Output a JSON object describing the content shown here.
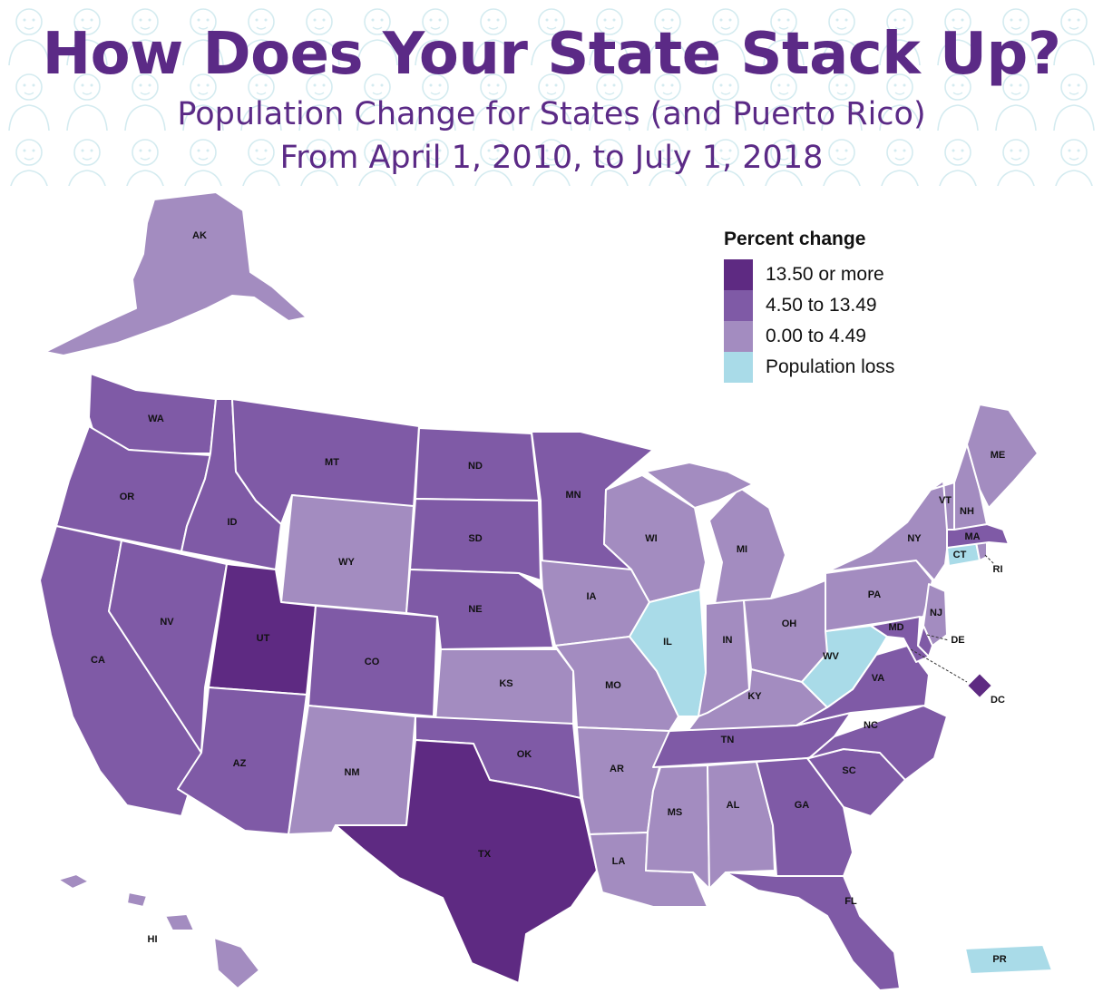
{
  "title": "How Does Your State Stack Up?",
  "subtitle_line1": "Population Change for States (and Puerto Rico)",
  "subtitle_line2": "From April 1, 2010, to July 1, 2018",
  "colors": {
    "dark": "#5e2a82",
    "mid": "#7f5aa6",
    "light": "#a38cc0",
    "loss": "#a9dbe8",
    "title": "#5b2a86"
  },
  "legend": {
    "title": "Percent change",
    "items": [
      {
        "label": "13.50 or more",
        "color": "#5e2a82"
      },
      {
        "label": "4.50 to 13.49",
        "color": "#7f5aa6"
      },
      {
        "label": "0.00 to 4.49",
        "color": "#a38cc0"
      },
      {
        "label": "Population loss",
        "color": "#a9dbe8"
      }
    ]
  },
  "states": [
    {
      "abbr": "AK",
      "category": "0.00 to 4.49"
    },
    {
      "abbr": "WA",
      "category": "4.50 to 13.49"
    },
    {
      "abbr": "OR",
      "category": "4.50 to 13.49"
    },
    {
      "abbr": "CA",
      "category": "4.50 to 13.49"
    },
    {
      "abbr": "ID",
      "category": "4.50 to 13.49"
    },
    {
      "abbr": "NV",
      "category": "4.50 to 13.49"
    },
    {
      "abbr": "MT",
      "category": "4.50 to 13.49"
    },
    {
      "abbr": "WY",
      "category": "0.00 to 4.49"
    },
    {
      "abbr": "UT",
      "category": "13.50 or more"
    },
    {
      "abbr": "AZ",
      "category": "4.50 to 13.49"
    },
    {
      "abbr": "CO",
      "category": "4.50 to 13.49"
    },
    {
      "abbr": "NM",
      "category": "0.00 to 4.49"
    },
    {
      "abbr": "ND",
      "category": "4.50 to 13.49"
    },
    {
      "abbr": "SD",
      "category": "4.50 to 13.49"
    },
    {
      "abbr": "NE",
      "category": "4.50 to 13.49"
    },
    {
      "abbr": "KS",
      "category": "0.00 to 4.49"
    },
    {
      "abbr": "OK",
      "category": "4.50 to 13.49"
    },
    {
      "abbr": "TX",
      "category": "13.50 or more"
    },
    {
      "abbr": "MN",
      "category": "4.50 to 13.49"
    },
    {
      "abbr": "IA",
      "category": "0.00 to 4.49"
    },
    {
      "abbr": "MO",
      "category": "0.00 to 4.49"
    },
    {
      "abbr": "AR",
      "category": "0.00 to 4.49"
    },
    {
      "abbr": "LA",
      "category": "0.00 to 4.49"
    },
    {
      "abbr": "WI",
      "category": "0.00 to 4.49"
    },
    {
      "abbr": "IL",
      "category": "Population loss"
    },
    {
      "abbr": "MI",
      "category": "0.00 to 4.49"
    },
    {
      "abbr": "IN",
      "category": "0.00 to 4.49"
    },
    {
      "abbr": "OH",
      "category": "0.00 to 4.49"
    },
    {
      "abbr": "KY",
      "category": "0.00 to 4.49"
    },
    {
      "abbr": "TN",
      "category": "4.50 to 13.49"
    },
    {
      "abbr": "MS",
      "category": "0.00 to 4.49"
    },
    {
      "abbr": "AL",
      "category": "0.00 to 4.49"
    },
    {
      "abbr": "GA",
      "category": "4.50 to 13.49"
    },
    {
      "abbr": "FL",
      "category": "4.50 to 13.49"
    },
    {
      "abbr": "SC",
      "category": "4.50 to 13.49"
    },
    {
      "abbr": "NC",
      "category": "4.50 to 13.49"
    },
    {
      "abbr": "VA",
      "category": "4.50 to 13.49"
    },
    {
      "abbr": "WV",
      "category": "Population loss"
    },
    {
      "abbr": "PA",
      "category": "0.00 to 4.49"
    },
    {
      "abbr": "NY",
      "category": "0.00 to 4.49"
    },
    {
      "abbr": "NJ",
      "category": "0.00 to 4.49"
    },
    {
      "abbr": "DE",
      "category": "4.50 to 13.49"
    },
    {
      "abbr": "MD",
      "category": "4.50 to 13.49"
    },
    {
      "abbr": "DC",
      "category": "13.50 or more"
    },
    {
      "abbr": "CT",
      "category": "Population loss"
    },
    {
      "abbr": "RI",
      "category": "0.00 to 4.49"
    },
    {
      "abbr": "MA",
      "category": "4.50 to 13.49"
    },
    {
      "abbr": "VT",
      "category": "0.00 to 4.49"
    },
    {
      "abbr": "NH",
      "category": "0.00 to 4.49"
    },
    {
      "abbr": "ME",
      "category": "0.00 to 4.49"
    },
    {
      "abbr": "HI",
      "category": "0.00 to 4.49"
    },
    {
      "abbr": "PR",
      "category": "Population loss"
    }
  ]
}
